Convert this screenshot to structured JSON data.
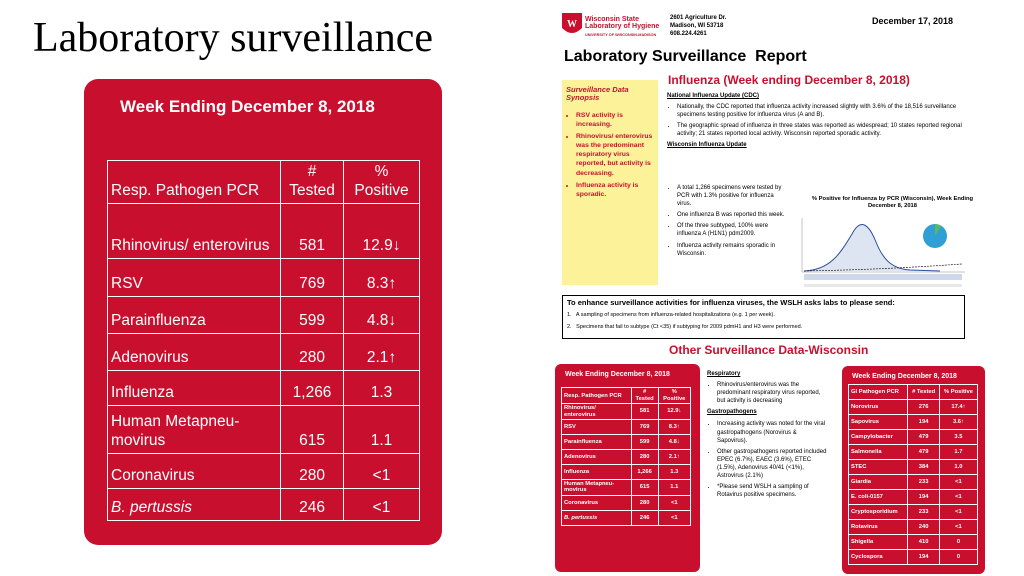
{
  "slide_title": "Laboratory surveillance",
  "main_table": {
    "title": "Week Ending December 8, 2018",
    "headers": [
      "Resp. Pathogen PCR",
      "# Tested",
      "% Positive"
    ],
    "rows": [
      [
        "Rhinovirus/ enterovirus",
        "581",
        "12.9↓"
      ],
      [
        "RSV",
        "769",
        "8.3↑"
      ],
      [
        "Parainfluenza",
        "599",
        "4.8↓"
      ],
      [
        "Adenovirus",
        "280",
        "2.1↑"
      ],
      [
        "Influenza",
        "1,266",
        "1.3"
      ],
      [
        "Human Metapneu-movirus",
        "615",
        "1.1"
      ],
      [
        "Coronavirus",
        "280",
        "<1"
      ],
      [
        "B. pertussis",
        "246",
        "<1"
      ]
    ]
  },
  "report": {
    "lab_name": "Wisconsin State Laboratory of Hygiene",
    "university": "UNIVERSITY OF WISCONSIN-MADISON",
    "address": [
      "2601 Agriculture Dr.",
      "Madison, WI 53718",
      "608.224.4261"
    ],
    "date": "December 17, 2018",
    "title": "Laboratory Surveillance  Report",
    "synopsis": {
      "heading": "Surveillance Data Synopsis",
      "items": [
        "RSV activity is increasing.",
        "Rhinovirus/ enterovirus was the predominant respiratory virus reported, but activity is decreasing.",
        "Influenza activity is sporadic."
      ]
    },
    "influenza": {
      "heading": "Influenza (Week ending December 8, 2018)",
      "national_heading": "National Influenza Update (CDC)",
      "national_items": [
        "Nationally, the CDC reported that influenza activity increased slightly with 3.6% of the 18,516 surveillance specimens testing positive for influenza virus (A and B).",
        "The geographic spread of influenza in three states was reported as widespread; 10 states reported regional activity; 21 states reported local activity. Wisconsin reported sporadic activity."
      ],
      "wisconsin_heading": "Wisconsin Influenza Update",
      "wisconsin_items": [
        "A total 1,266 specimens were tested by PCR with 1.3% positive for influenza virus.",
        "One influenza B was reported this week.",
        "Of the three subtyped, 100% were influenza A (H1N1) pdm2009.",
        "Influenza activity remains sporadic in Wisconsin."
      ],
      "chart_title": "% Positive for Influenza by PCR (Wisconsin), Week Ending December 8, 2018"
    },
    "request": {
      "lead": "To enhance surveillance activities for influenza viruses, the WSLH asks labs to please send:",
      "items": [
        "1.   A sampling of specimens from influenza-related hospitalizations (e.g. 1 per week).",
        "2.   Specimens that fail to subtype (Ct <35) if subtyping for 2009 pdmH1 and H3 were performed."
      ]
    },
    "other_heading": "Other Surveillance Data-Wisconsin",
    "resp_table": {
      "title": "Week Ending December 8, 2018",
      "headers": [
        "Resp. Pathogen PCR",
        "# Tested",
        "% Positive"
      ],
      "rows": [
        [
          "Rhinovirus/ enterovirus",
          "581",
          "12.9↓"
        ],
        [
          "RSV",
          "769",
          "8.3↑"
        ],
        [
          "Parainfluenza",
          "599",
          "4.8↓"
        ],
        [
          "Adenovirus",
          "280",
          "2.1↑"
        ],
        [
          "Influenza",
          "1,266",
          "1.3"
        ],
        [
          "Human Metapneu-movirus",
          "615",
          "1.1"
        ],
        [
          "Coronavirus",
          "280",
          "<1"
        ],
        [
          "B. pertussis",
          "246",
          "<1"
        ]
      ]
    },
    "notes": {
      "respiratory_heading": "Respiratory",
      "respiratory_items": [
        "Rhinovirus/enterovirus was the predominant respiratory virus reported, but activity is decreasing"
      ],
      "gastro_heading": "Gastropathogens",
      "gastro_items": [
        "Increasing activity was noted for the viral gastropathogens (Norovirus & Sapovirus).",
        "Other gastropathogens reported included EPEC (6.7%), EAEC (3.6%), ETEC (1.5%), Adenovirus 40/41 (<1%), Astrovirus (2.1%)",
        "*Please send WSLH a sampling of Rotavirus positive specimens."
      ]
    },
    "gi_table": {
      "title": "Week Ending  December 8, 2018",
      "headers": [
        "GI Pathogen PCR",
        "# Tested",
        "% Positive"
      ],
      "rows": [
        [
          "Norovirus",
          "276",
          "17.4↑"
        ],
        [
          "Sapovirus",
          "194",
          "3.6↑"
        ],
        [
          "Campylobacter",
          "479",
          "3.5"
        ],
        [
          "Salmonella",
          "479",
          "1.7"
        ],
        [
          "STEC",
          "384",
          "1.0"
        ],
        [
          "Giardia",
          "233",
          "<1"
        ],
        [
          "E. coli-0157",
          "194",
          "<1"
        ],
        [
          "Cryptosporidium",
          "233",
          "<1"
        ],
        [
          "Rotavirus",
          "240",
          "<1"
        ],
        [
          "Shigella",
          "410",
          "0"
        ],
        [
          "Cyclospora",
          "194",
          "0"
        ]
      ]
    }
  }
}
